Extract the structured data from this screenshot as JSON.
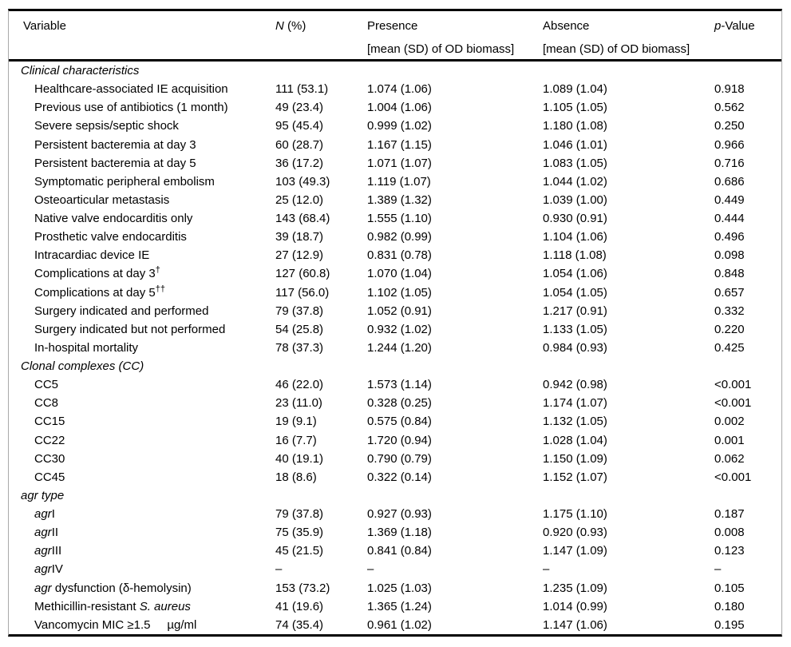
{
  "table": {
    "border_color": "#000000",
    "side_border_color": "#a9a9a9",
    "text_color": "#000000",
    "header": {
      "variable": "Variable",
      "n_italic": "N",
      "n_rest": " (%)",
      "presence_line1": "Presence",
      "presence_line2": "[mean (SD) of OD biomass]",
      "absence_line1": "Absence",
      "absence_line2": "[mean (SD) of OD biomass]",
      "p_italic": "p",
      "p_rest": "-Value"
    },
    "sections": [
      {
        "title": [
          {
            "t": "Clinical characteristics",
            "i": true
          }
        ],
        "rows": [
          {
            "variable": [
              {
                "t": "Healthcare-associated IE acquisition"
              }
            ],
            "n": "111 (53.1)",
            "presence": "1.074 (1.06)",
            "absence": "1.089 (1.04)",
            "p": "0.918"
          },
          {
            "variable": [
              {
                "t": "Previous use of antibiotics (1 month)"
              }
            ],
            "n": "49 (23.4)",
            "presence": "1.004 (1.06)",
            "absence": "1.105 (1.05)",
            "p": "0.562"
          },
          {
            "variable": [
              {
                "t": "Severe sepsis/septic shock"
              }
            ],
            "n": "95 (45.4)",
            "presence": "0.999 (1.02)",
            "absence": "1.180 (1.08)",
            "p": "0.250"
          },
          {
            "variable": [
              {
                "t": "Persistent bacteremia at day 3"
              }
            ],
            "n": "60 (28.7)",
            "presence": "1.167 (1.15)",
            "absence": "1.046 (1.01)",
            "p": "0.966"
          },
          {
            "variable": [
              {
                "t": "Persistent bacteremia at day 5"
              }
            ],
            "n": "36 (17.2)",
            "presence": "1.071 (1.07)",
            "absence": "1.083 (1.05)",
            "p": "0.716"
          },
          {
            "variable": [
              {
                "t": "Symptomatic peripheral embolism"
              }
            ],
            "n": "103 (49.3)",
            "presence": "1.119 (1.07)",
            "absence": "1.044 (1.02)",
            "p": "0.686"
          },
          {
            "variable": [
              {
                "t": "Osteoarticular metastasis"
              }
            ],
            "n": "25 (12.0)",
            "presence": "1.389 (1.32)",
            "absence": "1.039 (1.00)",
            "p": "0.449"
          },
          {
            "variable": [
              {
                "t": "Native valve endocarditis only"
              }
            ],
            "n": "143 (68.4)",
            "presence": "1.555 (1.10)",
            "absence": "0.930 (0.91)",
            "p": "0.444"
          },
          {
            "variable": [
              {
                "t": "Prosthetic valve endocarditis"
              }
            ],
            "n": "39 (18.7)",
            "presence": "0.982 (0.99)",
            "absence": "1.104 (1.06)",
            "p": "0.496"
          },
          {
            "variable": [
              {
                "t": "Intracardiac device IE"
              }
            ],
            "n": "27 (12.9)",
            "presence": "0.831 (0.78)",
            "absence": "1.118 (1.08)",
            "p": "0.098"
          },
          {
            "variable": [
              {
                "t": "Complications at day 3"
              },
              {
                "t": "†",
                "sup": true
              }
            ],
            "n": "127 (60.8)",
            "presence": "1.070 (1.04)",
            "absence": "1.054 (1.06)",
            "p": "0.848"
          },
          {
            "variable": [
              {
                "t": "Complications at day 5"
              },
              {
                "t": "††",
                "sup": true
              }
            ],
            "n": "117 (56.0)",
            "presence": "1.102 (1.05)",
            "absence": "1.054 (1.05)",
            "p": "0.657"
          },
          {
            "variable": [
              {
                "t": "Surgery indicated and performed"
              }
            ],
            "n": "79 (37.8)",
            "presence": "1.052 (0.91)",
            "absence": "1.217 (0.91)",
            "p": "0.332"
          },
          {
            "variable": [
              {
                "t": "Surgery indicated but not performed"
              }
            ],
            "n": "54 (25.8)",
            "presence": "0.932 (1.02)",
            "absence": "1.133 (1.05)",
            "p": "0.220"
          },
          {
            "variable": [
              {
                "t": "In-hospital mortality"
              }
            ],
            "n": "78 (37.3)",
            "presence": "1.244 (1.20)",
            "absence": "0.984 (0.93)",
            "p": "0.425"
          }
        ]
      },
      {
        "title": [
          {
            "t": "Clonal complexes (CC)",
            "i": true
          }
        ],
        "rows": [
          {
            "variable": [
              {
                "t": "CC5"
              }
            ],
            "n": "46 (22.0)",
            "presence": "1.573 (1.14)",
            "absence": "0.942 (0.98)",
            "p": "<0.001"
          },
          {
            "variable": [
              {
                "t": "CC8"
              }
            ],
            "n": "23 (11.0)",
            "presence": "0.328 (0.25)",
            "absence": "1.174 (1.07)",
            "p": "<0.001"
          },
          {
            "variable": [
              {
                "t": "CC15"
              }
            ],
            "n": "19 (9.1)",
            "presence": "0.575 (0.84)",
            "absence": "1.132 (1.05)",
            "p": "0.002"
          },
          {
            "variable": [
              {
                "t": "CC22"
              }
            ],
            "n": "16 (7.7)",
            "presence": "1.720 (0.94)",
            "absence": "1.028 (1.04)",
            "p": "0.001"
          },
          {
            "variable": [
              {
                "t": "CC30"
              }
            ],
            "n": "40 (19.1)",
            "presence": "0.790 (0.79)",
            "absence": "1.150 (1.09)",
            "p": "0.062"
          },
          {
            "variable": [
              {
                "t": "CC45"
              }
            ],
            "n": "18 (8.6)",
            "presence": "0.322 (0.14)",
            "absence": "1.152 (1.07)",
            "p": "<0.001"
          }
        ]
      },
      {
        "title": [
          {
            "t": "agr type",
            "i": true
          }
        ],
        "rows": [
          {
            "variable": [
              {
                "t": "agr",
                "i": true
              },
              {
                "t": "I"
              }
            ],
            "n": "79 (37.8)",
            "presence": "0.927 (0.93)",
            "absence": "1.175 (1.10)",
            "p": "0.187"
          },
          {
            "variable": [
              {
                "t": "agr",
                "i": true
              },
              {
                "t": "II"
              }
            ],
            "n": "75 (35.9)",
            "presence": "1.369 (1.18)",
            "absence": "0.920 (0.93)",
            "p": "0.008"
          },
          {
            "variable": [
              {
                "t": "agr",
                "i": true
              },
              {
                "t": "III"
              }
            ],
            "n": "45 (21.5)",
            "presence": "0.841 (0.84)",
            "absence": "1.147 (1.09)",
            "p": "0.123"
          },
          {
            "variable": [
              {
                "t": "agr",
                "i": true
              },
              {
                "t": "IV"
              }
            ],
            "n": "–",
            "presence": "–",
            "absence": "–",
            "p": "–"
          },
          {
            "variable": [
              {
                "t": "agr",
                "i": true
              },
              {
                "t": " dysfunction (δ-hemolysin)"
              }
            ],
            "n": "153 (73.2)",
            "presence": "1.025 (1.03)",
            "absence": "1.235 (1.09)",
            "p": "0.105"
          },
          {
            "variable": [
              {
                "t": "Methicillin-resistant "
              },
              {
                "t": "S. aureus",
                "i": true
              }
            ],
            "n": "41 (19.6)",
            "presence": "1.365 (1.24)",
            "absence": "1.014 (0.99)",
            "p": "0.180"
          },
          {
            "variable": [
              {
                "t": "Vancomycin MIC ≥1.5     µg/ml"
              }
            ],
            "n": "74 (35.4)",
            "presence": "0.961 (1.02)",
            "absence": "1.147 (1.06)",
            "p": "0.195"
          }
        ]
      }
    ]
  }
}
